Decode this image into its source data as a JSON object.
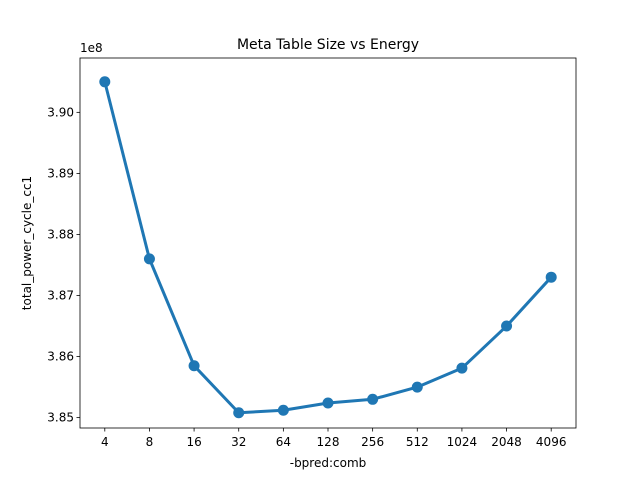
{
  "chart_data": {
    "type": "line",
    "title": "Meta Table Size vs Energy",
    "xlabel": "-bpred:comb",
    "ylabel": "total_power_cycle_cc1",
    "offset_label": "1e8",
    "categories": [
      "4",
      "8",
      "16",
      "32",
      "64",
      "128",
      "256",
      "512",
      "1024",
      "2048",
      "4096"
    ],
    "series": [
      {
        "values": [
          390500000,
          387600000,
          385850000,
          385080000,
          385120000,
          385240000,
          385300000,
          385500000,
          385810000,
          386500000,
          387300000
        ],
        "color": "#1f77b4"
      }
    ],
    "ylim": [
      384830000,
      390890000
    ],
    "yticks": [
      385000000,
      386000000,
      387000000,
      388000000,
      389000000,
      390000000
    ],
    "ytick_labels": [
      "3.85",
      "3.86",
      "3.87",
      "3.88",
      "3.89",
      "3.90"
    ],
    "grid": false,
    "legend": "none"
  }
}
